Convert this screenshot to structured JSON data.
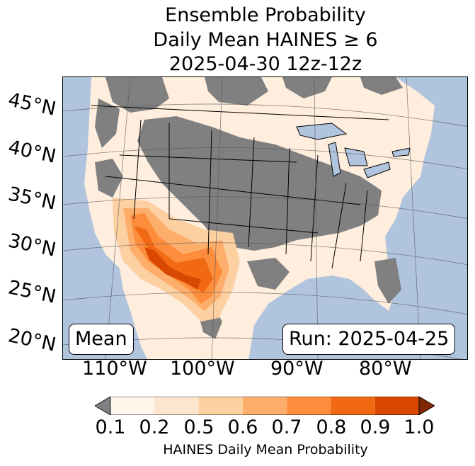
{
  "title": {
    "line1": "Ensemble Probability",
    "line2": "Daily Mean HAINES ≥ 6",
    "line3": "2025-04-30 12z-12z"
  },
  "map": {
    "background_color": "#b0c4de",
    "land_low_color": "#ffeedd",
    "no_data_color": "#808080",
    "lat_labels": [
      "45°N",
      "40°N",
      "35°N",
      "30°N",
      "25°N",
      "20°N"
    ],
    "lon_labels": [
      "110°W",
      "100°W",
      "90°W",
      "80°W"
    ]
  },
  "boxes": {
    "left": "Mean",
    "right": "Run: 2025-04-25"
  },
  "colorbar": {
    "label": "HAINES Daily Mean Probability",
    "ticks": [
      "0.1",
      "0.2",
      "0.5",
      "0.6",
      "0.7",
      "0.8",
      "0.9",
      "1.0"
    ],
    "under_color": "#808080",
    "over_color": "#7f2704",
    "colors": [
      "#fff5eb",
      "#fee6ce",
      "#fdd0a2",
      "#fdae6b",
      "#fd8d3c",
      "#f16913",
      "#d94801"
    ]
  }
}
